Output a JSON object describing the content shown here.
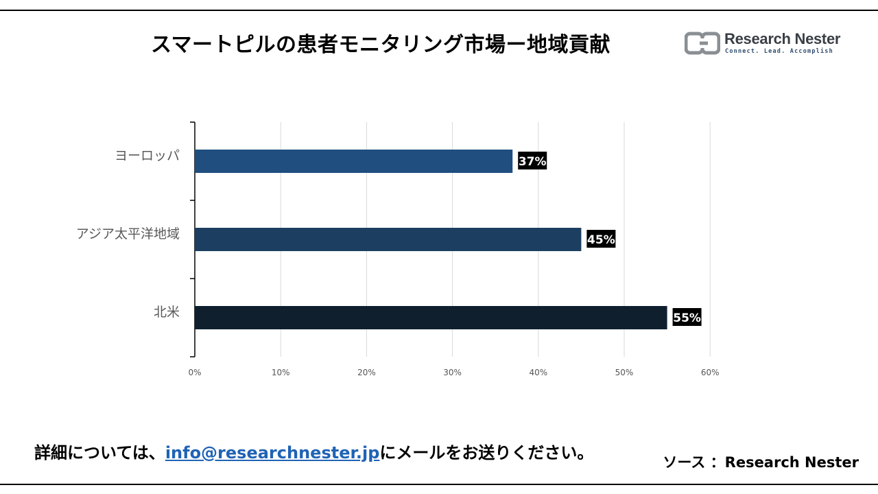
{
  "header": {
    "title": "スマートピルの患者モニタリング市場ー地域貢献"
  },
  "logo": {
    "name": "Research Nester",
    "tagline": "Connect. Lead. Accomplish",
    "colors": {
      "mark": "#8a8f94",
      "text": "#3a3f45",
      "tagline": "#2e4a6e"
    }
  },
  "chart_data": {
    "type": "bar",
    "orientation": "horizontal",
    "categories": [
      "ヨーロッパ",
      "アジア太平洋地域",
      "北米"
    ],
    "values": [
      37,
      45,
      55
    ],
    "data_labels": [
      "37%",
      "45%",
      "55%"
    ],
    "bar_colors": [
      "#1f4e7f",
      "#1c3e61",
      "#0f1f2e"
    ],
    "xlim": [
      0,
      60
    ],
    "x_ticks": [
      0,
      10,
      20,
      30,
      40,
      50,
      60
    ],
    "x_tick_labels": [
      "0%",
      "10%",
      "20%",
      "30%",
      "40%",
      "50%",
      "60%"
    ],
    "grid": "vertical",
    "title": "",
    "xlabel": "",
    "ylabel": ""
  },
  "footer": {
    "contact_prefix": "詳細については、",
    "email": "info@researchnester.jp",
    "contact_suffix": "にメールをお送りください。",
    "source": "ソース ：Research Nester"
  }
}
